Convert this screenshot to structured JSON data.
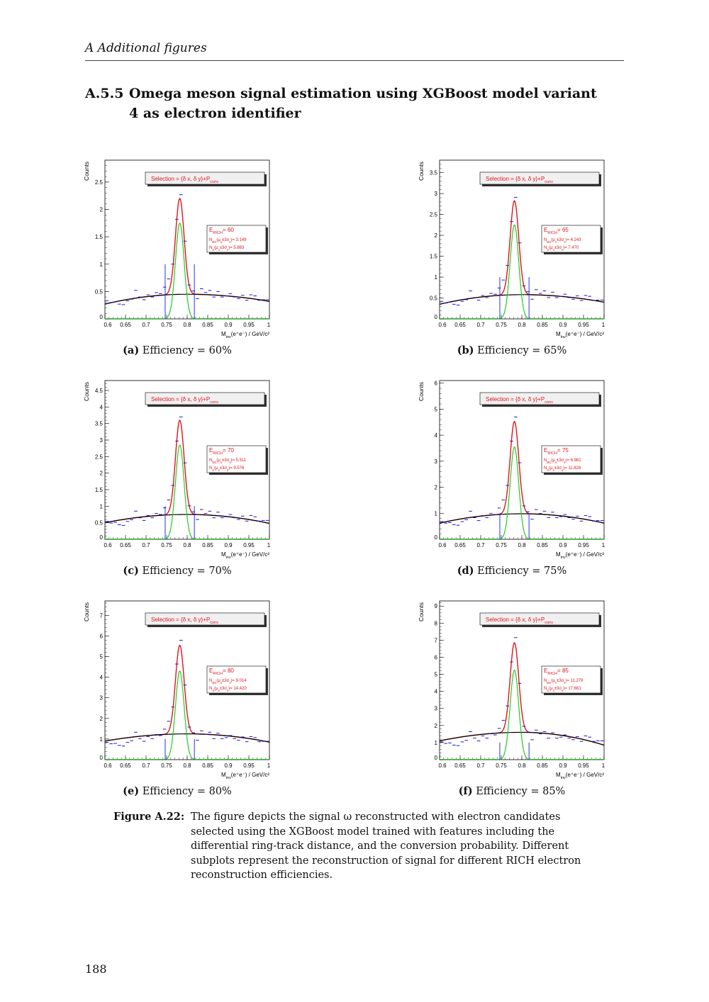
{
  "header": {
    "running_title": "A  Additional figures",
    "page_number": "188"
  },
  "section": {
    "number": "A.5.5",
    "title": "Omega meson signal estimation using XGBoost model variant 4 as electron identifier"
  },
  "figure": {
    "label": "Figure A.22:",
    "caption": "The figure depicts the signal ω reconstructed with electron candidates selected using the XGBoost model trained with features including the differential ring-track distance, and the conversion probability. Different subplots represent the reconstruction of signal for different RICH electron reconstruction efficiencies."
  },
  "colors": {
    "data": "#1a1acc",
    "total_fit": "#e0141c",
    "signal": "#22cc22",
    "background": "#000000",
    "window": "#2233ee",
    "text_red": "#e0141c"
  },
  "chart_data": [
    {
      "id": "a",
      "caption_label": "(a)",
      "caption_text": "Efficiency = 60%",
      "type": "line",
      "ylabel": "Counts",
      "xlabel": "M_inv(e+e-) / GeV/c2",
      "xlabel_main": "M",
      "xlabel_sub": "inv",
      "xlabel_rest": "(e⁺e⁻) / GeV/c²",
      "xlim": [
        0.6,
        1.0
      ],
      "ylim": [
        0,
        2.9
      ],
      "yticks": [
        0,
        0.5,
        1,
        1.5,
        2,
        2.5
      ],
      "xticks": [
        0.6,
        0.65,
        0.7,
        0.75,
        0.8,
        0.85,
        0.9,
        0.95,
        1
      ],
      "selection": "Selection = {δ x, δ y}+P",
      "selection_sub": "conv",
      "erich": "60",
      "nbg": "3.149",
      "ns": "5.883",
      "bkg": [
        0.27,
        0.45,
        0.32
      ],
      "signal": {
        "mean": 0.782,
        "sigma": 0.0105,
        "amp": 1.75
      },
      "window": [
        0.7465,
        0.8175
      ],
      "window_height": 1.0,
      "points": [
        0.33,
        0.3,
        0.31,
        0.27,
        0.26,
        0.33,
        0.36,
        0.52,
        0.4,
        0.35,
        0.44,
        0.4,
        0.48,
        0.46,
        0.58,
        0.73,
        1.0,
        1.82,
        2.27,
        1.42,
        0.62,
        0.51,
        0.37,
        0.55,
        0.48,
        0.52,
        0.4,
        0.5,
        0.4,
        0.42,
        0.46,
        0.4,
        0.37,
        0.43,
        0.34,
        0.44,
        0.42,
        0.34,
        0.35,
        0.35
      ]
    },
    {
      "id": "b",
      "caption_label": "(b)",
      "caption_text": "Efficiency = 65%",
      "type": "line",
      "ylabel": "Counts",
      "xlabel_main": "M",
      "xlabel_sub": "inv",
      "xlabel_rest": "(e⁺e⁻) / GeV/c²",
      "xlim": [
        0.6,
        1.0
      ],
      "ylim": [
        0,
        3.8
      ],
      "yticks": [
        0,
        0.5,
        1,
        1.5,
        2,
        2.5,
        3,
        3.5
      ],
      "xticks": [
        0.6,
        0.65,
        0.7,
        0.75,
        0.8,
        0.85,
        0.9,
        0.95,
        1
      ],
      "selection": "Selection = {δ x, δ y}+P",
      "selection_sub": "conv",
      "erich": "65",
      "nbg": "4.243",
      "ns": "7.470",
      "bkg": [
        0.35,
        0.58,
        0.4
      ],
      "signal": {
        "mean": 0.782,
        "sigma": 0.0105,
        "amp": 2.25
      },
      "window": [
        0.7465,
        0.8175
      ],
      "window_height": 1.0,
      "points": [
        0.42,
        0.38,
        0.4,
        0.35,
        0.33,
        0.42,
        0.46,
        0.67,
        0.51,
        0.45,
        0.56,
        0.51,
        0.61,
        0.59,
        0.74,
        0.93,
        1.28,
        2.33,
        2.91,
        1.82,
        0.79,
        0.65,
        0.47,
        0.7,
        0.61,
        0.67,
        0.51,
        0.64,
        0.51,
        0.54,
        0.59,
        0.51,
        0.47,
        0.55,
        0.44,
        0.56,
        0.54,
        0.44,
        0.45,
        0.45
      ]
    },
    {
      "id": "c",
      "caption_label": "(c)",
      "caption_text": "Efficiency = 70%",
      "type": "line",
      "ylabel": "Counts",
      "xlabel_main": "M",
      "xlabel_sub": "inv",
      "xlabel_rest": "(e⁺e⁻) / GeV/c²",
      "xlim": [
        0.6,
        1.0
      ],
      "ylim": [
        0,
        4.8
      ],
      "yticks": [
        0,
        0.5,
        1,
        1.5,
        2,
        2.5,
        3,
        3.5,
        4,
        4.5
      ],
      "xticks": [
        0.6,
        0.65,
        0.7,
        0.75,
        0.8,
        0.85,
        0.9,
        0.95,
        1
      ],
      "selection": "Selection = {δ x, δ y}+P",
      "selection_sub": "conv",
      "erich": "70",
      "nbg": "5.511",
      "ns": "9.576",
      "bkg": [
        0.5,
        0.75,
        0.48
      ],
      "signal": {
        "mean": 0.782,
        "sigma": 0.0105,
        "amp": 2.85
      },
      "window": [
        0.7465,
        0.8175
      ],
      "window_height": 1.0,
      "points": [
        0.54,
        0.49,
        0.51,
        0.44,
        0.42,
        0.54,
        0.59,
        0.85,
        0.65,
        0.57,
        0.72,
        0.65,
        0.78,
        0.75,
        0.95,
        1.19,
        1.63,
        2.97,
        3.7,
        2.31,
        1.01,
        0.83,
        0.6,
        0.9,
        0.78,
        0.85,
        0.65,
        0.82,
        0.65,
        0.68,
        0.75,
        0.65,
        0.6,
        0.7,
        0.55,
        0.72,
        0.68,
        0.55,
        0.57,
        0.57
      ]
    },
    {
      "id": "d",
      "caption_label": "(d)",
      "caption_text": "Efficiency = 75%",
      "type": "line",
      "ylabel": "Counts",
      "xlabel_main": "M",
      "xlabel_sub": "inv",
      "xlabel_rest": "(e⁺e⁻) / GeV/c²",
      "xlim": [
        0.6,
        1.0
      ],
      "ylim": [
        0,
        6.1
      ],
      "yticks": [
        0,
        1,
        2,
        3,
        4,
        5,
        6
      ],
      "xticks": [
        0.6,
        0.65,
        0.7,
        0.75,
        0.8,
        0.85,
        0.9,
        0.95,
        1
      ],
      "selection": "Selection = {δ x, δ y}+P",
      "selection_sub": "conv",
      "erich": "75",
      "nbg": "6.981",
      "ns": "11.828",
      "bkg": [
        0.62,
        0.98,
        0.62
      ],
      "signal": {
        "mean": 0.782,
        "sigma": 0.0105,
        "amp": 3.55
      },
      "window": [
        0.7465,
        0.8175
      ],
      "window_height": 1.0,
      "points": [
        0.68,
        0.62,
        0.64,
        0.56,
        0.54,
        0.68,
        0.75,
        1.08,
        0.83,
        0.72,
        0.91,
        0.83,
        0.99,
        0.95,
        1.2,
        1.51,
        2.07,
        3.77,
        4.7,
        2.94,
        1.28,
        1.06,
        0.77,
        1.14,
        0.99,
        1.08,
        0.83,
        1.04,
        0.83,
        0.87,
        0.95,
        0.83,
        0.77,
        0.89,
        0.7,
        0.91,
        0.87,
        0.7,
        0.72,
        0.72
      ]
    },
    {
      "id": "e",
      "caption_label": "(e)",
      "caption_text": "Efficiency = 80%",
      "type": "line",
      "ylabel": "Counts",
      "xlabel_main": "M",
      "xlabel_sub": "inv",
      "xlabel_rest": "(e⁺e⁻) / GeV/c²",
      "xlim": [
        0.6,
        1.0
      ],
      "ylim": [
        0,
        7.7
      ],
      "yticks": [
        0,
        1,
        2,
        3,
        4,
        5,
        6,
        7
      ],
      "xticks": [
        0.6,
        0.65,
        0.7,
        0.75,
        0.8,
        0.85,
        0.9,
        0.95,
        1
      ],
      "selection": "Selection = {δ x, δ y}+P",
      "selection_sub": "conv",
      "erich": "80",
      "nbg": "9.014",
      "ns": "14.420",
      "bkg": [
        0.9,
        1.25,
        0.85
      ],
      "signal": {
        "mean": 0.782,
        "sigma": 0.0105,
        "amp": 4.3
      },
      "window": [
        0.7465,
        0.8175
      ],
      "window_height": 1.0,
      "points": [
        0.84,
        0.77,
        0.79,
        0.69,
        0.66,
        0.84,
        0.92,
        1.33,
        1.02,
        0.89,
        1.12,
        1.02,
        1.22,
        1.17,
        1.48,
        1.86,
        2.55,
        4.64,
        5.79,
        3.62,
        1.58,
        1.3,
        0.94,
        1.4,
        1.22,
        1.33,
        1.02,
        1.28,
        1.02,
        1.07,
        1.17,
        1.02,
        0.94,
        1.1,
        0.87,
        1.12,
        1.07,
        0.87,
        0.89,
        0.89
      ]
    },
    {
      "id": "f",
      "caption_label": "(f)",
      "caption_text": "Efficiency = 85%",
      "type": "line",
      "ylabel": "Counts",
      "xlabel_main": "M",
      "xlabel_sub": "inv",
      "xlabel_rest": "(e⁺e⁻) / GeV/c²",
      "xlim": [
        0.6,
        1.0
      ],
      "ylim": [
        0,
        9.3
      ],
      "yticks": [
        0,
        1,
        2,
        3,
        4,
        5,
        6,
        7,
        8,
        9
      ],
      "xticks": [
        0.6,
        0.65,
        0.7,
        0.75,
        0.8,
        0.85,
        0.9,
        0.95,
        1
      ],
      "selection": "Selection = {δ x, δ y}+P",
      "selection_sub": "conv",
      "erich": "85",
      "nbg": "11.279",
      "ns": "17.661",
      "bkg": [
        1.1,
        1.6,
        0.85
      ],
      "signal": {
        "mean": 0.782,
        "sigma": 0.0105,
        "amp": 5.25
      },
      "window": [
        0.7465,
        0.8175
      ],
      "window_height": 1.0,
      "points": [
        1.04,
        0.95,
        0.98,
        0.85,
        0.82,
        1.04,
        1.13,
        1.64,
        1.26,
        1.1,
        1.39,
        1.26,
        1.51,
        1.45,
        1.83,
        2.3,
        3.15,
        5.73,
        7.15,
        4.47,
        1.95,
        1.61,
        1.17,
        1.73,
        1.51,
        1.64,
        1.26,
        1.58,
        1.26,
        1.32,
        1.45,
        1.26,
        1.17,
        1.35,
        1.07,
        1.39,
        1.32,
        1.07,
        1.1,
        1.1
      ]
    }
  ],
  "stats_labels": {
    "e": "E",
    "e_sub": "RICH",
    "nbg": "N",
    "nbg_sub": "BG",
    "ns": "N",
    "ns_sub": "S",
    "window": "(μ",
    "mu_sub": "s",
    "pm": "±3σ",
    "sig_sub": "s",
    "close": ")= "
  }
}
